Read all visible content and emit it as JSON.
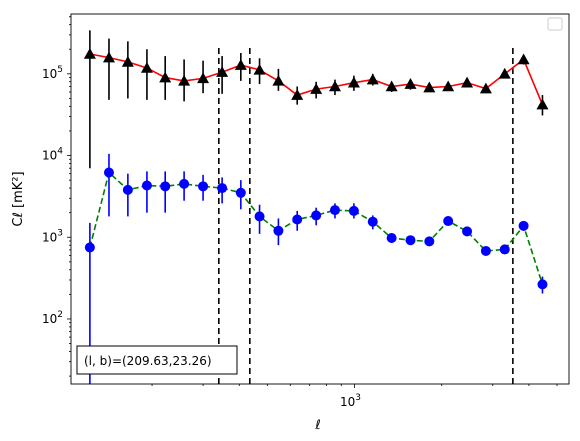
{
  "chart_data": {
    "type": "line",
    "xscale": "log",
    "yscale": "log",
    "xlim": [
      105,
      5500
    ],
    "ylim": [
      16,
      540000
    ],
    "xlabel": "ℓ",
    "ylabel": "Cℓ  [mK²]",
    "x_tick_labels": [
      {
        "value": 1000,
        "base": "10",
        "exp": "3"
      }
    ],
    "y_tick_labels": [
      {
        "value": 100,
        "base": "10",
        "exp": "2"
      },
      {
        "value": 1000,
        "base": "10",
        "exp": "3"
      },
      {
        "value": 10000,
        "base": "10",
        "exp": "4"
      },
      {
        "value": 100000,
        "base": "10",
        "exp": "5"
      }
    ],
    "annotation": "(l, b)=(209.63,23.26)",
    "legend": "top-right (empty)",
    "vlines": [
      {
        "x": 340,
        "style": "dashed",
        "color": "#000000"
      },
      {
        "x": 435,
        "style": "dashed",
        "color": "#000000"
      },
      {
        "x": 3520,
        "style": "dashed",
        "color": "#000000"
      }
    ],
    "series": [
      {
        "line_color": "#ff0000",
        "marker_color": "#000000",
        "marker": "triangle",
        "line_style": "solid",
        "points": [
          {
            "x": 122,
            "y": 175000,
            "lo": 7000,
            "hi": 340000
          },
          {
            "x": 142,
            "y": 158000,
            "lo": 48000,
            "hi": 270000
          },
          {
            "x": 165,
            "y": 140000,
            "lo": 50000,
            "hi": 250000
          },
          {
            "x": 192,
            "y": 118000,
            "lo": 48000,
            "hi": 200000
          },
          {
            "x": 222,
            "y": 90000,
            "lo": 48000,
            "hi": 165000
          },
          {
            "x": 258,
            "y": 82000,
            "lo": 46000,
            "hi": 150000
          },
          {
            "x": 300,
            "y": 88000,
            "lo": 58000,
            "hi": 145000
          },
          {
            "x": 349,
            "y": 105000,
            "lo": 57000,
            "hi": 165000
          },
          {
            "x": 405,
            "y": 128000,
            "lo": 82000,
            "hi": 180000
          },
          {
            "x": 470,
            "y": 112000,
            "lo": 75000,
            "hi": 155000
          },
          {
            "x": 546,
            "y": 82000,
            "lo": 62000,
            "hi": 115000
          },
          {
            "x": 634,
            "y": 55000,
            "lo": 42000,
            "hi": 70000
          },
          {
            "x": 737,
            "y": 65000,
            "lo": 50000,
            "hi": 80000
          },
          {
            "x": 856,
            "y": 70000,
            "lo": 55000,
            "hi": 85000
          },
          {
            "x": 995,
            "y": 78000,
            "lo": 62000,
            "hi": 95000
          },
          {
            "x": 1156,
            "y": 85000,
            "lo": 72000,
            "hi": 100000
          },
          {
            "x": 1343,
            "y": 70000,
            "lo": 60000,
            "hi": 80000
          },
          {
            "x": 1560,
            "y": 75000,
            "lo": 64000,
            "hi": 85000
          },
          {
            "x": 1812,
            "y": 68000,
            "lo": 60000,
            "hi": 76000
          },
          {
            "x": 2105,
            "y": 70000,
            "lo": 63000,
            "hi": 78000
          },
          {
            "x": 2446,
            "y": 78000,
            "lo": 70000,
            "hi": 86000
          },
          {
            "x": 2841,
            "y": 66000,
            "lo": 60000,
            "hi": 73000
          },
          {
            "x": 3300,
            "y": 100000,
            "lo": 88000,
            "hi": 115000
          },
          {
            "x": 3834,
            "y": 150000,
            "lo": 130000,
            "hi": 170000
          },
          {
            "x": 4454,
            "y": 42000,
            "lo": 31000,
            "hi": 55000
          }
        ]
      },
      {
        "line_color": "#008000",
        "marker_color": "#0000ff",
        "marker": "circle",
        "line_style": "dashed",
        "points": [
          {
            "x": 122,
            "y": 750,
            "lo": 5,
            "hi": 1500
          },
          {
            "x": 142,
            "y": 6200,
            "lo": 1800,
            "hi": 10500
          },
          {
            "x": 165,
            "y": 3800,
            "lo": 1800,
            "hi": 6000
          },
          {
            "x": 192,
            "y": 4300,
            "lo": 2000,
            "hi": 6400
          },
          {
            "x": 222,
            "y": 4200,
            "lo": 2000,
            "hi": 6400
          },
          {
            "x": 258,
            "y": 4500,
            "lo": 2800,
            "hi": 6400
          },
          {
            "x": 300,
            "y": 4200,
            "lo": 2800,
            "hi": 5800
          },
          {
            "x": 349,
            "y": 4000,
            "lo": 2600,
            "hi": 5400
          },
          {
            "x": 405,
            "y": 3500,
            "lo": 2200,
            "hi": 5000
          },
          {
            "x": 470,
            "y": 1800,
            "lo": 1100,
            "hi": 2500
          },
          {
            "x": 546,
            "y": 1200,
            "lo": 800,
            "hi": 1700
          },
          {
            "x": 634,
            "y": 1650,
            "lo": 1200,
            "hi": 2100
          },
          {
            "x": 737,
            "y": 1850,
            "lo": 1400,
            "hi": 2300
          },
          {
            "x": 856,
            "y": 2150,
            "lo": 1700,
            "hi": 2600
          },
          {
            "x": 995,
            "y": 2100,
            "lo": 1700,
            "hi": 2600
          },
          {
            "x": 1156,
            "y": 1550,
            "lo": 1250,
            "hi": 1850
          },
          {
            "x": 1343,
            "y": 980,
            "lo": 850,
            "hi": 1100
          },
          {
            "x": 1560,
            "y": 920,
            "lo": 820,
            "hi": 1020
          },
          {
            "x": 1812,
            "y": 890,
            "lo": 800,
            "hi": 980
          },
          {
            "x": 2105,
            "y": 1580,
            "lo": 1420,
            "hi": 1750
          },
          {
            "x": 2446,
            "y": 1180,
            "lo": 1050,
            "hi": 1300
          },
          {
            "x": 2841,
            "y": 680,
            "lo": 620,
            "hi": 740
          },
          {
            "x": 3300,
            "y": 710,
            "lo": 640,
            "hi": 780
          },
          {
            "x": 3834,
            "y": 1380,
            "lo": 1200,
            "hi": 1550
          },
          {
            "x": 4454,
            "y": 265,
            "lo": 205,
            "hi": 330
          }
        ]
      }
    ]
  }
}
